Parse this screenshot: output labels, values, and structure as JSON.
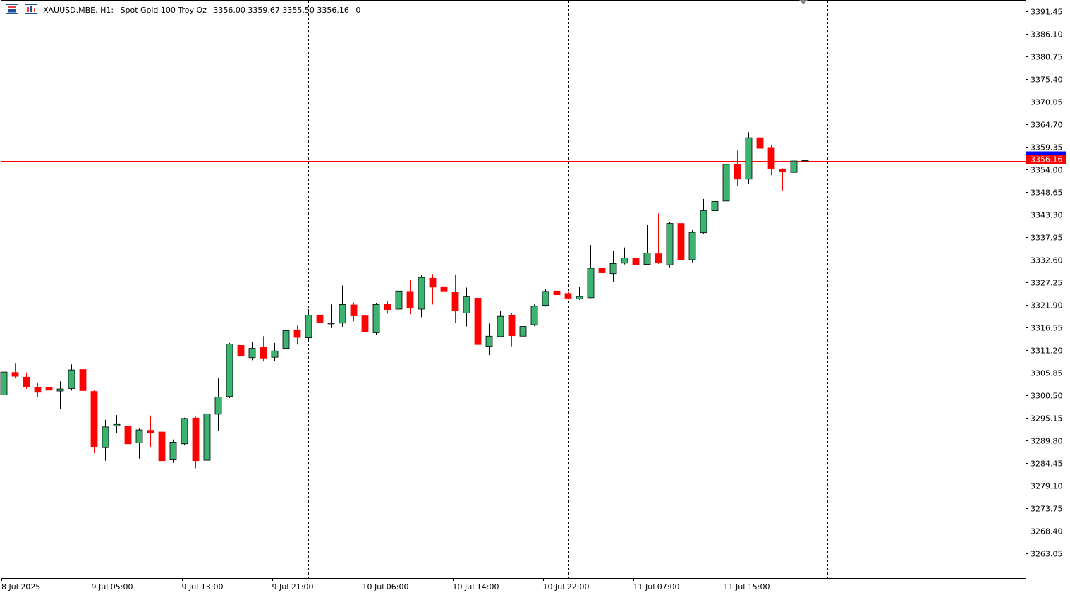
{
  "header": {
    "symbol": "XAUUSD.MBE, H1:",
    "description": "Spot Gold 100 Troy Oz",
    "ohlc": "3356.00 3359.67 3355.50 3356.16",
    "extra": "0"
  },
  "colors": {
    "bull": "#3cb371",
    "bear": "#ff0000",
    "wick": "#000000",
    "bid_line": "#ff0000",
    "ask_line": "#00008b",
    "tag_bg": "#ff0000",
    "ask_tag": "#0000ff",
    "grid": "#000000"
  },
  "current_price_label": "3356.16",
  "chart_data": {
    "type": "candlestick",
    "timeframe": "H1",
    "ylim": [
      3258.0,
      3395.0
    ],
    "y_ticks": [
      "3391.45",
      "3386.10",
      "3380.75",
      "3375.40",
      "3370.05",
      "3364.70",
      "3359.35",
      "3354.00",
      "3348.65",
      "3343.30",
      "3337.95",
      "3332.60",
      "3327.25",
      "3321.90",
      "3316.55",
      "3311.20",
      "3305.85",
      "3300.50",
      "3295.15",
      "3289.80",
      "3284.45",
      "3279.10",
      "3273.75",
      "3268.40",
      "3263.05"
    ],
    "x_ticks": [
      "8 Jul 2025",
      "9 Jul 05:00",
      "9 Jul 13:00",
      "9 Jul 21:00",
      "10 Jul 06:00",
      "10 Jul 14:00",
      "10 Jul 22:00",
      "11 Jul 07:00",
      "11 Jul 15:00"
    ],
    "x_tick_bar_index": [
      0,
      8,
      16,
      24,
      32,
      40,
      48,
      56,
      64
    ],
    "period_separators_bar_index": [
      4,
      27,
      50,
      73
    ],
    "bid": 3356.16,
    "ask": 3356.8,
    "candles": [
      {
        "o": 3300.6,
        "h": 3306.1,
        "l": 3300.4,
        "c": 3306.0
      },
      {
        "o": 3305.9,
        "h": 3308.0,
        "l": 3304.5,
        "c": 3305.0
      },
      {
        "o": 3304.8,
        "h": 3305.9,
        "l": 3302.0,
        "c": 3302.5
      },
      {
        "o": 3302.4,
        "h": 3303.5,
        "l": 3300.0,
        "c": 3301.2
      },
      {
        "o": 3302.4,
        "h": 3303.2,
        "l": 3300.6,
        "c": 3301.7
      },
      {
        "o": 3301.5,
        "h": 3303.8,
        "l": 3297.3,
        "c": 3302.0
      },
      {
        "o": 3302.1,
        "h": 3307.8,
        "l": 3301.6,
        "c": 3306.5
      },
      {
        "o": 3306.6,
        "h": 3306.8,
        "l": 3299.2,
        "c": 3301.6
      },
      {
        "o": 3301.4,
        "h": 3301.7,
        "l": 3286.8,
        "c": 3288.3
      },
      {
        "o": 3288.1,
        "h": 3294.7,
        "l": 3285.0,
        "c": 3293.0
      },
      {
        "o": 3293.2,
        "h": 3295.8,
        "l": 3291.5,
        "c": 3293.6
      },
      {
        "o": 3293.2,
        "h": 3297.7,
        "l": 3288.6,
        "c": 3289.0
      },
      {
        "o": 3289.2,
        "h": 3292.6,
        "l": 3285.5,
        "c": 3292.3
      },
      {
        "o": 3292.2,
        "h": 3295.7,
        "l": 3288.3,
        "c": 3291.6
      },
      {
        "o": 3291.8,
        "h": 3292.1,
        "l": 3282.7,
        "c": 3285.0
      },
      {
        "o": 3285.2,
        "h": 3290.0,
        "l": 3284.5,
        "c": 3289.4
      },
      {
        "o": 3289.0,
        "h": 3295.2,
        "l": 3288.6,
        "c": 3295.0
      },
      {
        "o": 3295.1,
        "h": 3295.4,
        "l": 3283.2,
        "c": 3285.0
      },
      {
        "o": 3285.1,
        "h": 3297.1,
        "l": 3285.0,
        "c": 3296.1
      },
      {
        "o": 3296.0,
        "h": 3304.5,
        "l": 3292.0,
        "c": 3300.1
      },
      {
        "o": 3300.2,
        "h": 3312.9,
        "l": 3299.8,
        "c": 3312.6
      },
      {
        "o": 3312.3,
        "h": 3313.0,
        "l": 3306.1,
        "c": 3309.8
      },
      {
        "o": 3309.4,
        "h": 3313.2,
        "l": 3308.8,
        "c": 3311.6
      },
      {
        "o": 3311.8,
        "h": 3314.5,
        "l": 3308.5,
        "c": 3309.3
      },
      {
        "o": 3309.5,
        "h": 3312.9,
        "l": 3308.7,
        "c": 3311.0
      },
      {
        "o": 3311.6,
        "h": 3316.5,
        "l": 3311.2,
        "c": 3315.8
      },
      {
        "o": 3316.0,
        "h": 3317.0,
        "l": 3312.5,
        "c": 3314.2
      },
      {
        "o": 3314.1,
        "h": 3320.9,
        "l": 3313.3,
        "c": 3319.5
      },
      {
        "o": 3319.5,
        "h": 3320.0,
        "l": 3315.5,
        "c": 3317.8
      },
      {
        "o": 3317.4,
        "h": 3322.0,
        "l": 3316.4,
        "c": 3317.6
      },
      {
        "o": 3317.6,
        "h": 3326.5,
        "l": 3316.7,
        "c": 3322.0
      },
      {
        "o": 3321.9,
        "h": 3322.5,
        "l": 3318.0,
        "c": 3319.3
      },
      {
        "o": 3319.3,
        "h": 3319.6,
        "l": 3315.0,
        "c": 3315.5
      },
      {
        "o": 3315.3,
        "h": 3322.4,
        "l": 3314.8,
        "c": 3322.0
      },
      {
        "o": 3322.0,
        "h": 3322.8,
        "l": 3319.8,
        "c": 3320.8
      },
      {
        "o": 3320.9,
        "h": 3327.6,
        "l": 3319.8,
        "c": 3325.2
      },
      {
        "o": 3325.1,
        "h": 3327.9,
        "l": 3319.7,
        "c": 3321.2
      },
      {
        "o": 3320.9,
        "h": 3328.9,
        "l": 3319.0,
        "c": 3328.4
      },
      {
        "o": 3328.2,
        "h": 3329.2,
        "l": 3322.0,
        "c": 3326.1
      },
      {
        "o": 3326.2,
        "h": 3327.1,
        "l": 3323.0,
        "c": 3325.2
      },
      {
        "o": 3325.0,
        "h": 3329.1,
        "l": 3317.6,
        "c": 3320.5
      },
      {
        "o": 3320.0,
        "h": 3326.0,
        "l": 3316.8,
        "c": 3323.8
      },
      {
        "o": 3323.5,
        "h": 3328.3,
        "l": 3311.5,
        "c": 3312.5
      },
      {
        "o": 3312.1,
        "h": 3317.5,
        "l": 3310.0,
        "c": 3314.5
      },
      {
        "o": 3314.4,
        "h": 3320.5,
        "l": 3314.3,
        "c": 3319.2
      },
      {
        "o": 3319.4,
        "h": 3320.0,
        "l": 3312.1,
        "c": 3314.6
      },
      {
        "o": 3314.5,
        "h": 3317.8,
        "l": 3314.1,
        "c": 3316.8
      },
      {
        "o": 3317.2,
        "h": 3322.0,
        "l": 3316.9,
        "c": 3321.6
      },
      {
        "o": 3321.8,
        "h": 3325.6,
        "l": 3321.5,
        "c": 3325.1
      },
      {
        "o": 3325.2,
        "h": 3325.6,
        "l": 3323.5,
        "c": 3324.3
      },
      {
        "o": 3324.6,
        "h": 3325.1,
        "l": 3323.2,
        "c": 3323.5
      },
      {
        "o": 3323.3,
        "h": 3326.2,
        "l": 3323.1,
        "c": 3323.9
      },
      {
        "o": 3323.6,
        "h": 3336.1,
        "l": 3323.5,
        "c": 3330.6
      },
      {
        "o": 3330.6,
        "h": 3331.2,
        "l": 3326.0,
        "c": 3329.5
      },
      {
        "o": 3329.3,
        "h": 3334.7,
        "l": 3327.3,
        "c": 3331.7
      },
      {
        "o": 3331.8,
        "h": 3335.5,
        "l": 3331.5,
        "c": 3333.0
      },
      {
        "o": 3333.0,
        "h": 3335.0,
        "l": 3329.5,
        "c": 3331.5
      },
      {
        "o": 3331.5,
        "h": 3340.8,
        "l": 3331.4,
        "c": 3334.2
      },
      {
        "o": 3334.0,
        "h": 3343.6,
        "l": 3331.6,
        "c": 3332.0
      },
      {
        "o": 3331.4,
        "h": 3341.6,
        "l": 3330.8,
        "c": 3341.2
      },
      {
        "o": 3341.2,
        "h": 3342.9,
        "l": 3332.3,
        "c": 3332.6
      },
      {
        "o": 3332.6,
        "h": 3339.6,
        "l": 3332.0,
        "c": 3339.1
      },
      {
        "o": 3339.0,
        "h": 3347.0,
        "l": 3338.7,
        "c": 3344.2
      },
      {
        "o": 3344.2,
        "h": 3349.5,
        "l": 3342.0,
        "c": 3346.4
      },
      {
        "o": 3346.5,
        "h": 3356.0,
        "l": 3345.6,
        "c": 3355.2
      },
      {
        "o": 3355.1,
        "h": 3358.5,
        "l": 3350.0,
        "c": 3351.7
      },
      {
        "o": 3351.7,
        "h": 3362.8,
        "l": 3350.6,
        "c": 3361.5
      },
      {
        "o": 3361.5,
        "h": 3368.6,
        "l": 3358.0,
        "c": 3359.0
      },
      {
        "o": 3359.2,
        "h": 3359.9,
        "l": 3352.6,
        "c": 3354.2
      },
      {
        "o": 3354.0,
        "h": 3354.3,
        "l": 3349.0,
        "c": 3353.5
      },
      {
        "o": 3353.3,
        "h": 3358.4,
        "l": 3353.0,
        "c": 3356.0
      },
      {
        "o": 3356.0,
        "h": 3359.67,
        "l": 3355.5,
        "c": 3356.16
      }
    ]
  }
}
